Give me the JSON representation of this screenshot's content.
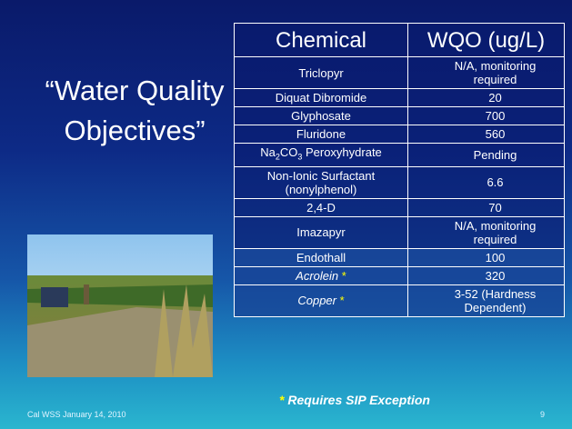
{
  "slide": {
    "title": "“Water Quality Objectives”",
    "table": {
      "header": [
        "Chemical",
        "WQO (ug/L)"
      ],
      "rows": [
        [
          "Triclopyr",
          "N/A, monitoring required"
        ],
        [
          "Diquat Dibromide",
          "20"
        ],
        [
          "Glyphosate",
          "700"
        ],
        [
          "Fluridone",
          "560"
        ],
        [
          [
            {
              "text": "Na"
            },
            {
              "text": "2",
              "sub": true
            },
            {
              "text": "CO"
            },
            {
              "text": "3",
              "sub": true
            },
            {
              "text": " Peroxyhydrate"
            }
          ],
          "Pending"
        ],
        [
          "Non-Ionic Surfactant (nonylphenol)",
          "6.6"
        ],
        [
          "2,4-D",
          "70"
        ],
        [
          "Imazapyr",
          "N/A, monitoring required"
        ],
        [
          "Endothall",
          "100"
        ],
        [
          [
            {
              "text": "Acrolein",
              "italic": true
            },
            {
              "text": " *",
              "color": "#ffff00"
            }
          ],
          "320"
        ],
        [
          [
            {
              "text": "Copper",
              "italic": true
            },
            {
              "text": " *",
              "color": "#ffff00"
            }
          ],
          "3-52 (Hardness Dependent)"
        ]
      ]
    },
    "footnote": [
      {
        "text": "*",
        "color": "#ffff00"
      },
      {
        "text": " Requires SIP Exception"
      }
    ],
    "footer": {
      "date": "Cal WSS January 14, 2010",
      "page_number": "9"
    }
  }
}
